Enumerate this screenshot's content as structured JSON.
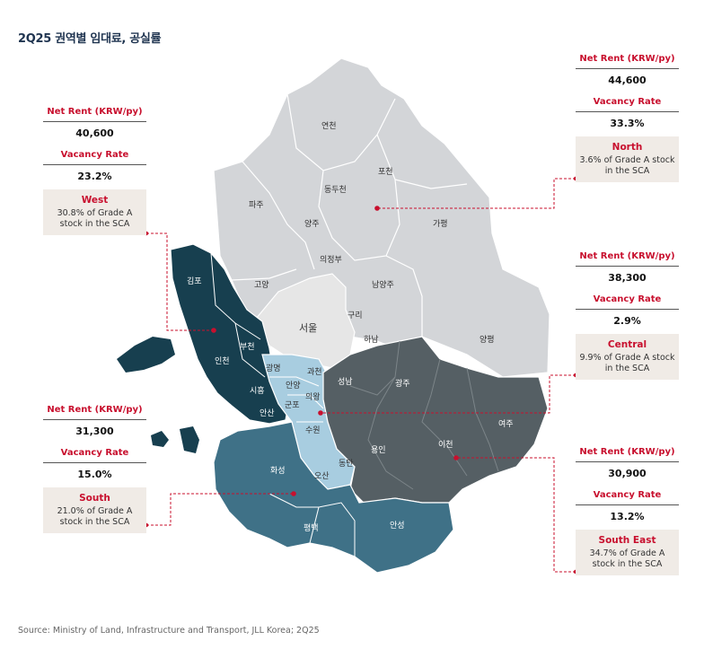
{
  "title": "2Q25 권역별 임대료, 공실률",
  "source": "Source: Ministry of Land, Infrastructure and Transport, JLL Korea; 2Q25",
  "colors": {
    "north": "#d3d5d8",
    "central": "#e6e6e6",
    "west": "#173f4f",
    "south": "#3f7187",
    "south_east": "#555f64",
    "accent": "#c8102e"
  },
  "cards": [
    {
      "key": "west",
      "rent_label": "Net Rent (KRW/py)",
      "rent": "40,600",
      "vac_label": "Vacancy Rate",
      "vac": "23.2%",
      "region": "West",
      "share": "30.8% of Grade A stock in the SCA"
    },
    {
      "key": "north",
      "rent_label": "Net Rent (KRW/py)",
      "rent": "44,600",
      "vac_label": "Vacancy Rate",
      "vac": "33.3%",
      "region": "North",
      "share": "3.6% of Grade A stock in the SCA"
    },
    {
      "key": "central",
      "rent_label": "Net Rent (KRW/py)",
      "rent": "38,300",
      "vac_label": "Vacancy Rate",
      "vac": "2.9%",
      "region": "Central",
      "share": "9.9% of Grade A stock in the SCA"
    },
    {
      "key": "south",
      "rent_label": "Net Rent (KRW/py)",
      "rent": "31,300",
      "vac_label": "Vacancy Rate",
      "vac": "15.0%",
      "region": "South",
      "share": "21.0% of Grade A stock in the SCA"
    },
    {
      "key": "south_east",
      "rent_label": "Net Rent (KRW/py)",
      "rent": "30,900",
      "vac_label": "Vacancy Rate",
      "vac": "13.2%",
      "region": "South East",
      "share": "34.7% of Grade A stock in the SCA"
    }
  ],
  "districts": {
    "yeoncheon": "연천",
    "pocheon": "포천",
    "dongducheon": "동두천",
    "paju": "파주",
    "gapyeong": "가평",
    "yangju": "양주",
    "uijeongbu": "의정부",
    "gimpo": "김포",
    "goyang": "고양",
    "namyangju": "남양주",
    "seoul": "서울",
    "guri": "구리",
    "hanam": "하남",
    "yangpyeong": "양평",
    "bucheon": "부천",
    "incheon": "인천",
    "gwangmyeong": "광명",
    "gwacheon": "과천",
    "anyang": "안양",
    "siheung": "시흥",
    "uiwang": "의왕",
    "gunpo": "군포",
    "seongnam": "성남",
    "gwangju": "광주",
    "yeoju": "여주",
    "ansan": "안산",
    "suwon": "수원",
    "yongin": "용인",
    "icheon": "이천",
    "hwaseong": "화성",
    "osan": "오산",
    "dongtan": "동탄",
    "pyeongtaek": "평택",
    "anseong": "안성"
  }
}
